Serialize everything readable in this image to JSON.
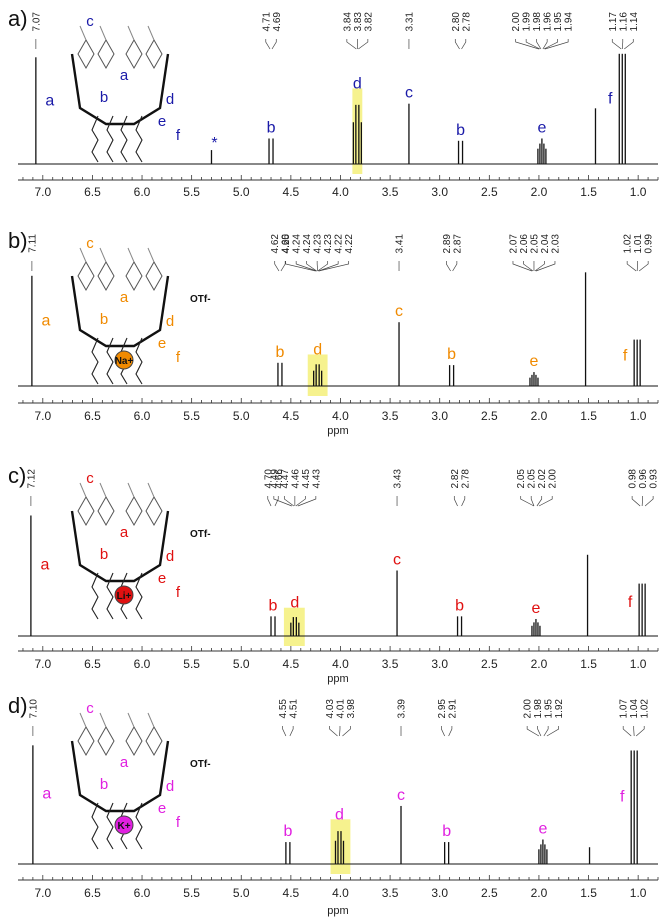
{
  "panels": [
    {
      "panel_label": "a)",
      "label_color": "#1a1aa8",
      "ion": "",
      "counterion": "",
      "peak_labels_text": "a b c d e f",
      "peak_labels": [
        "a",
        "b",
        "d",
        "c",
        "b",
        "e",
        "f"
      ],
      "star_label": "*",
      "ppm_readouts": [
        {
          "value": 7.07,
          "text": "7.07"
        },
        {
          "value": 4.71,
          "text": "4.71"
        },
        {
          "value": 4.69,
          "text": "4.69"
        },
        {
          "value": 3.84,
          "text": "3.84"
        },
        {
          "value": 3.83,
          "text": "3.83"
        },
        {
          "value": 3.82,
          "text": "3.82"
        },
        {
          "value": 3.31,
          "text": "3.31"
        },
        {
          "value": 2.8,
          "text": "2.80"
        },
        {
          "value": 2.78,
          "text": "2.78"
        },
        {
          "value": 2.0,
          "text": "2.00"
        },
        {
          "value": 1.99,
          "text": "1.99"
        },
        {
          "value": 1.98,
          "text": "1.98"
        },
        {
          "value": 1.96,
          "text": "1.96"
        },
        {
          "value": 1.95,
          "text": "1.95"
        },
        {
          "value": 1.94,
          "text": "1.94"
        },
        {
          "value": 1.17,
          "text": "1.17"
        },
        {
          "value": 1.16,
          "text": "1.16"
        },
        {
          "value": 1.14,
          "text": "1.14"
        }
      ]
    },
    {
      "panel_label": "b)",
      "label_color": "#f08a00",
      "ion": "Na+",
      "counterion": "OTf-",
      "peak_labels_text": "a b c d e f",
      "peak_labels": [
        "a",
        "b",
        "d",
        "c",
        "b",
        "e",
        "f"
      ],
      "star_label": "",
      "ppm_readouts": [
        {
          "value": 7.11,
          "text": "7.11"
        },
        {
          "value": 4.62,
          "text": "4.62"
        },
        {
          "value": 4.6,
          "text": "4.60"
        },
        {
          "value": 4.25,
          "text": "4.25"
        },
        {
          "value": 4.24,
          "text": "4.24"
        },
        {
          "value": 4.24,
          "text": "4.24"
        },
        {
          "value": 4.23,
          "text": "4.23"
        },
        {
          "value": 4.23,
          "text": "4.23"
        },
        {
          "value": 4.22,
          "text": "4.22"
        },
        {
          "value": 4.22,
          "text": "4.22"
        },
        {
          "value": 3.41,
          "text": "3.41"
        },
        {
          "value": 2.89,
          "text": "2.89"
        },
        {
          "value": 2.87,
          "text": "2.87"
        },
        {
          "value": 2.07,
          "text": "2.07"
        },
        {
          "value": 2.06,
          "text": "2.06"
        },
        {
          "value": 2.05,
          "text": "2.05"
        },
        {
          "value": 2.04,
          "text": "2.04"
        },
        {
          "value": 2.03,
          "text": "2.03"
        },
        {
          "value": 1.02,
          "text": "1.02"
        },
        {
          "value": 1.01,
          "text": "1.01"
        },
        {
          "value": 0.99,
          "text": "0.99"
        }
      ]
    },
    {
      "panel_label": "c)",
      "label_color": "#e01010",
      "ion": "Li+",
      "counterion": "OTf-",
      "peak_labels_text": "a b c d e f",
      "peak_labels": [
        "a",
        "b",
        "d",
        "c",
        "b",
        "e",
        "f"
      ],
      "star_label": "",
      "ppm_readouts": [
        {
          "value": 7.12,
          "text": "7.12"
        },
        {
          "value": 4.7,
          "text": "4.70"
        },
        {
          "value": 4.66,
          "text": "4.66"
        },
        {
          "value": 4.49,
          "text": "4.49"
        },
        {
          "value": 4.47,
          "text": "4.47"
        },
        {
          "value": 4.46,
          "text": "4.46"
        },
        {
          "value": 4.45,
          "text": "4.45"
        },
        {
          "value": 4.43,
          "text": "4.43"
        },
        {
          "value": 3.43,
          "text": "3.43"
        },
        {
          "value": 2.82,
          "text": "2.82"
        },
        {
          "value": 2.78,
          "text": "2.78"
        },
        {
          "value": 2.05,
          "text": "2.05"
        },
        {
          "value": 2.05,
          "text": "2.05"
        },
        {
          "value": 2.02,
          "text": "2.02"
        },
        {
          "value": 2.0,
          "text": "2.00"
        },
        {
          "value": 0.98,
          "text": "0.98"
        },
        {
          "value": 0.96,
          "text": "0.96"
        },
        {
          "value": 0.93,
          "text": "0.93"
        }
      ]
    },
    {
      "panel_label": "d)",
      "label_color": "#e020e0",
      "ion": "K+",
      "counterion": "OTf-",
      "peak_labels_text": "a b c d e f",
      "peak_labels": [
        "a",
        "b",
        "d",
        "c",
        "b",
        "e",
        "f"
      ],
      "star_label": "",
      "ppm_readouts": [
        {
          "value": 7.1,
          "text": "7.10"
        },
        {
          "value": 4.55,
          "text": "4.55"
        },
        {
          "value": 4.51,
          "text": "4.51"
        },
        {
          "value": 4.03,
          "text": "4.03"
        },
        {
          "value": 4.01,
          "text": "4.01"
        },
        {
          "value": 3.98,
          "text": "3.98"
        },
        {
          "value": 3.39,
          "text": "3.39"
        },
        {
          "value": 2.95,
          "text": "2.95"
        },
        {
          "value": 2.91,
          "text": "2.91"
        },
        {
          "value": 2.0,
          "text": "2.00"
        },
        {
          "value": 1.98,
          "text": "1.98"
        },
        {
          "value": 1.95,
          "text": "1.95"
        },
        {
          "value": 1.92,
          "text": "1.92"
        },
        {
          "value": 1.07,
          "text": "1.07"
        },
        {
          "value": 1.04,
          "text": "1.04"
        },
        {
          "value": 1.02,
          "text": "1.02"
        }
      ]
    }
  ],
  "colors": {
    "highlight": "#f5f07a",
    "spectrum": "#111111",
    "na_ion": "#f08a00",
    "li_ion": "#e01010",
    "k_ion": "#e020e0"
  },
  "chart_data": [
    {
      "type": "line",
      "panel": "a)",
      "xlabel": "",
      "x_reversed": true,
      "xlim": [
        7.25,
        0.8
      ],
      "x_ticks": [
        "7.0",
        "6.5",
        "6.0",
        "5.5",
        "5.0",
        "4.5",
        "4.0",
        "3.5",
        "3.0",
        "2.5",
        "2.0",
        "1.5",
        "1.0"
      ],
      "highlight_range_ppm": [
        3.88,
        3.78
      ],
      "peaks": [
        {
          "ppm": 7.07,
          "height": 0.92,
          "label": "a"
        },
        {
          "ppm": 5.3,
          "height": 0.12,
          "label": "*"
        },
        {
          "ppm": 4.7,
          "height": 0.22,
          "label": "b"
        },
        {
          "ppm": 3.83,
          "height": 0.6,
          "label": "d"
        },
        {
          "ppm": 3.31,
          "height": 0.52,
          "label": "c"
        },
        {
          "ppm": 2.79,
          "height": 0.2,
          "label": "b"
        },
        {
          "ppm": 1.97,
          "height": 0.22,
          "label": "e"
        },
        {
          "ppm": 1.43,
          "height": 0.48,
          "label": ""
        },
        {
          "ppm": 1.16,
          "height": 0.95,
          "label": "f"
        }
      ]
    },
    {
      "type": "line",
      "panel": "b)",
      "xlabel": "ppm",
      "x_reversed": true,
      "xlim": [
        7.25,
        0.8
      ],
      "x_ticks": [
        "7.0",
        "6.5",
        "6.0",
        "5.5",
        "5.0",
        "4.5",
        "4.0",
        "3.5",
        "3.0",
        "2.5",
        "2.0",
        "1.5",
        "1.0"
      ],
      "highlight_range_ppm": [
        4.33,
        4.13
      ],
      "peaks": [
        {
          "ppm": 7.11,
          "height": 0.95,
          "label": "a"
        },
        {
          "ppm": 4.61,
          "height": 0.2,
          "label": "b"
        },
        {
          "ppm": 4.23,
          "height": 0.22,
          "label": "d"
        },
        {
          "ppm": 3.41,
          "height": 0.55,
          "label": "c"
        },
        {
          "ppm": 2.88,
          "height": 0.18,
          "label": "b"
        },
        {
          "ppm": 2.05,
          "height": 0.12,
          "label": "e"
        },
        {
          "ppm": 1.53,
          "height": 0.98,
          "label": ""
        },
        {
          "ppm": 1.01,
          "height": 0.4,
          "label": "f"
        }
      ]
    },
    {
      "type": "line",
      "panel": "c)",
      "xlabel": "ppm",
      "x_reversed": true,
      "xlim": [
        7.25,
        0.8
      ],
      "x_ticks": [
        "7.0",
        "6.5",
        "6.0",
        "5.5",
        "5.0",
        "4.5",
        "4.0",
        "3.5",
        "3.0",
        "2.5",
        "2.0",
        "1.5",
        "1.0"
      ],
      "highlight_range_ppm": [
        4.57,
        4.36
      ],
      "peaks": [
        {
          "ppm": 7.12,
          "height": 0.92,
          "label": "a"
        },
        {
          "ppm": 4.68,
          "height": 0.15,
          "label": "b"
        },
        {
          "ppm": 4.46,
          "height": 0.17,
          "label": "d"
        },
        {
          "ppm": 3.43,
          "height": 0.5,
          "label": "c"
        },
        {
          "ppm": 2.8,
          "height": 0.15,
          "label": "b"
        },
        {
          "ppm": 2.03,
          "height": 0.13,
          "label": "e"
        },
        {
          "ppm": 1.51,
          "height": 0.62,
          "label": ""
        },
        {
          "ppm": 0.96,
          "height": 0.4,
          "label": "f"
        }
      ]
    },
    {
      "type": "line",
      "panel": "d)",
      "xlabel": "ppm",
      "x_reversed": true,
      "xlim": [
        7.25,
        0.8
      ],
      "x_ticks": [
        "7.0",
        "6.5",
        "6.0",
        "5.5",
        "5.0",
        "4.5",
        "4.0",
        "3.5",
        "3.0",
        "2.5",
        "2.0",
        "1.5",
        "1.0"
      ],
      "highlight_range_ppm": [
        4.1,
        3.9
      ],
      "peaks": [
        {
          "ppm": 7.1,
          "height": 0.92,
          "label": "a"
        },
        {
          "ppm": 4.53,
          "height": 0.17,
          "label": "b"
        },
        {
          "ppm": 4.01,
          "height": 0.3,
          "label": "d"
        },
        {
          "ppm": 3.39,
          "height": 0.45,
          "label": "c"
        },
        {
          "ppm": 2.93,
          "height": 0.17,
          "label": "b"
        },
        {
          "ppm": 1.96,
          "height": 0.19,
          "label": "e"
        },
        {
          "ppm": 1.49,
          "height": 0.13,
          "label": ""
        },
        {
          "ppm": 1.04,
          "height": 0.88,
          "label": "f"
        }
      ]
    }
  ]
}
